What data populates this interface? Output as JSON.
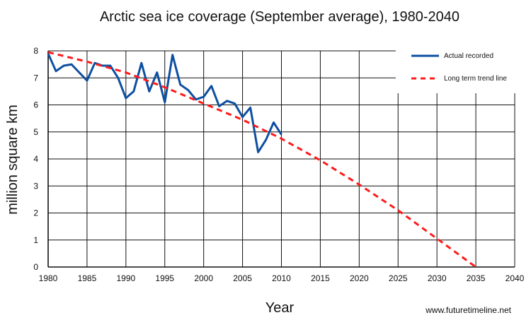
{
  "chart_data": {
    "type": "line",
    "title": "Arctic sea ice coverage (September average), 1980-2040",
    "xlabel": "Year",
    "ylabel": "million square km",
    "xlim": [
      1980,
      2040
    ],
    "ylim": [
      0,
      8
    ],
    "x_ticks": [
      1980,
      1985,
      1990,
      1995,
      2000,
      2005,
      2010,
      2015,
      2020,
      2025,
      2030,
      2035,
      2040
    ],
    "y_ticks": [
      0,
      1,
      2,
      3,
      4,
      5,
      6,
      7,
      8
    ],
    "grid": true,
    "legend_position": "top-right",
    "series": [
      {
        "name": "Actual recorded",
        "style": "solid",
        "color": "#0d4fa0",
        "x": [
          1980,
          1981,
          1982,
          1983,
          1984,
          1985,
          1986,
          1987,
          1988,
          1989,
          1990,
          1991,
          1992,
          1993,
          1994,
          1995,
          1996,
          1997,
          1998,
          1999,
          2000,
          2001,
          2002,
          2003,
          2004,
          2005,
          2006,
          2007,
          2008,
          2009,
          2010
        ],
        "values": [
          7.9,
          7.25,
          7.45,
          7.5,
          7.2,
          6.9,
          7.55,
          7.45,
          7.45,
          7.0,
          6.25,
          6.5,
          7.55,
          6.5,
          7.2,
          6.1,
          7.85,
          6.75,
          6.55,
          6.2,
          6.3,
          6.7,
          5.95,
          6.15,
          6.05,
          5.55,
          5.9,
          4.25,
          4.7,
          5.35,
          4.9
        ]
      },
      {
        "name": "Long term trend line",
        "style": "dashed",
        "color": "#ff1a1a",
        "x": [
          1980,
          1985,
          1990,
          1995,
          2000,
          2005,
          2010,
          2015,
          2020,
          2025,
          2030,
          2035
        ],
        "values": [
          7.95,
          7.6,
          7.2,
          6.65,
          6.05,
          5.45,
          4.75,
          3.95,
          3.05,
          2.1,
          1.05,
          0.0
        ]
      }
    ]
  },
  "watermark": "www.futuretimeline.net"
}
